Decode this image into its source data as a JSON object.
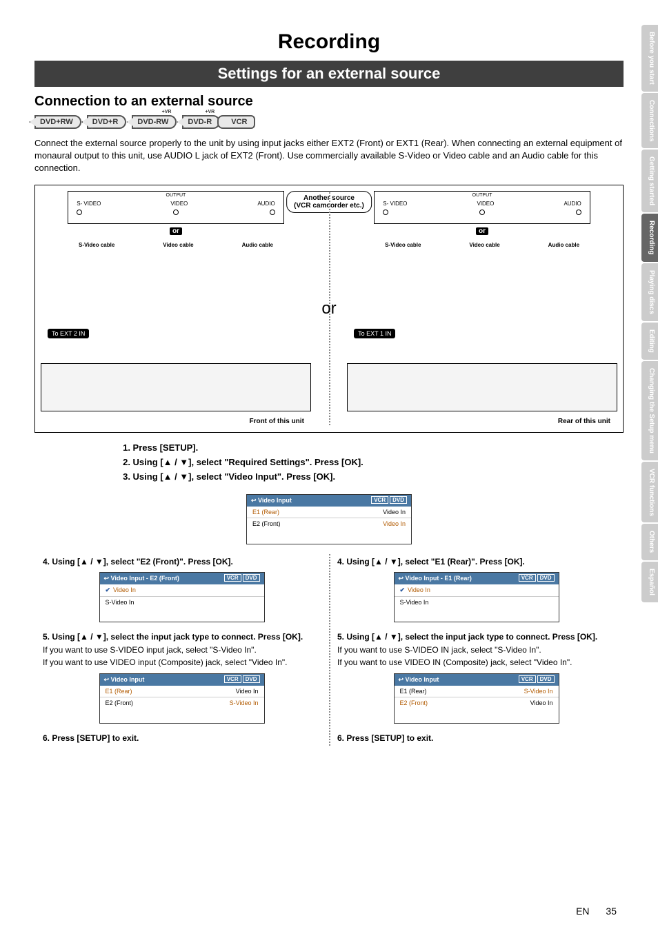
{
  "page_number": "35",
  "lang_code": "EN",
  "banner_title": "Recording",
  "subbar": "Settings for an external source",
  "h2": "Connection to an external source",
  "badges": [
    "DVD+RW",
    "DVD+R",
    "DVD-RW",
    "DVD-R",
    "VCR"
  ],
  "connect_text": "Connect the external source properly to the unit by using input jacks either EXT2 (Front) or EXT1 (Rear). When connecting an external equipment of monaural output to this unit, use AUDIO L jack of EXT2 (Front). Use commercially available S-Video or Video cable and an Audio cable for this connection.",
  "diagram": {
    "another_source_title": "Another source",
    "another_source_sub": "(VCR camcorder etc.)",
    "output_label": "OUTPUT",
    "jack_labels": [
      "S- VIDEO",
      "VIDEO",
      "AUDIO"
    ],
    "cable_labels": [
      "S-Video cable",
      "Video cable",
      "Audio cable"
    ],
    "or_small": "or",
    "or_big": "or",
    "to_ext2": "To EXT 2 IN",
    "to_ext1": "To EXT 1 IN",
    "front_caption": "Front of this unit",
    "rear_caption": "Rear of this unit"
  },
  "steps_center": [
    "1. Press [SETUP].",
    "2. Using [▲ / ▼], select \"Required Settings\". Press [OK].",
    "3. Using [▲ / ▼], select \"Video Input\". Press [OK]."
  ],
  "osd_main": {
    "title": "Video Input",
    "title_icon": "↩",
    "tabs": [
      "VCR",
      "DVD"
    ],
    "rows": [
      {
        "label": "E1 (Rear)",
        "value": "Video In",
        "val_orange": false,
        "lbl_orange": true
      },
      {
        "label": "E2 (Front)",
        "value": "Video In",
        "val_orange": true,
        "lbl_orange": false
      }
    ]
  },
  "cols": {
    "left": {
      "step4": "4. Using [▲ / ▼], select \"E2 (Front)\". Press [OK].",
      "osd_e2": {
        "title": "Video Input - E2 (Front)",
        "tabs": [
          "VCR",
          "DVD"
        ],
        "rows": [
          {
            "check": true,
            "label": "Video In",
            "orange": true
          },
          {
            "check": false,
            "label": "S-Video In",
            "orange": false
          }
        ]
      },
      "step5_head": "5. Using [▲ / ▼], select the input jack type to connect. Press [OK].",
      "step5_body1": "If you want to use S-VIDEO input jack, select \"S-Video In\".",
      "step5_body2": "If you want to use VIDEO input (Composite) jack, select \"Video In\".",
      "osd_result": {
        "title": "Video Input",
        "tabs": [
          "VCR",
          "DVD"
        ],
        "rows": [
          {
            "label": "E1 (Rear)",
            "value": "Video In",
            "val_orange": false,
            "lbl_orange": true
          },
          {
            "label": "E2 (Front)",
            "value": "S-Video In",
            "val_orange": true,
            "lbl_orange": false
          }
        ]
      },
      "step6": "6. Press [SETUP] to exit."
    },
    "right": {
      "step4": "4. Using [▲ / ▼], select \"E1 (Rear)\". Press [OK].",
      "osd_e1": {
        "title": "Video Input - E1 (Rear)",
        "tabs": [
          "VCR",
          "DVD"
        ],
        "rows": [
          {
            "check": true,
            "label": "Video In",
            "orange": true
          },
          {
            "check": false,
            "label": "S-Video In",
            "orange": false
          }
        ]
      },
      "step5_head": "5. Using [▲ / ▼], select the input jack type to connect. Press [OK].",
      "step5_body1": "If you want to use S-VIDEO IN jack, select \"S-Video In\".",
      "step5_body2": "If you want to use VIDEO IN (Composite) jack, select \"Video In\".",
      "osd_result": {
        "title": "Video Input",
        "tabs": [
          "VCR",
          "DVD"
        ],
        "rows": [
          {
            "label": "E1 (Rear)",
            "value": "S-Video In",
            "val_orange": true,
            "lbl_orange": false
          },
          {
            "label": "E2 (Front)",
            "value": "Video In",
            "val_orange": false,
            "lbl_orange": true
          }
        ]
      },
      "step6": "6. Press [SETUP] to exit."
    }
  },
  "side_tabs": [
    {
      "label": "Before you start",
      "active": false
    },
    {
      "label": "Connections",
      "active": false
    },
    {
      "label": "Getting started",
      "active": false
    },
    {
      "label": "Recording",
      "active": true
    },
    {
      "label": "Playing discs",
      "active": false
    },
    {
      "label": "Editing",
      "active": false
    },
    {
      "label": "Changing the Setup menu",
      "active": false
    },
    {
      "label": "VCR functions",
      "active": false
    },
    {
      "label": "Others",
      "active": false
    },
    {
      "label": "Español",
      "active": false
    }
  ],
  "colors": {
    "subbar_bg": "#3f3f3f",
    "osd_title_bg": "#4a78a3",
    "sel_orange": "#b15a00",
    "side_active_bg": "#666666",
    "side_inactive_bg": "#cccccc"
  }
}
